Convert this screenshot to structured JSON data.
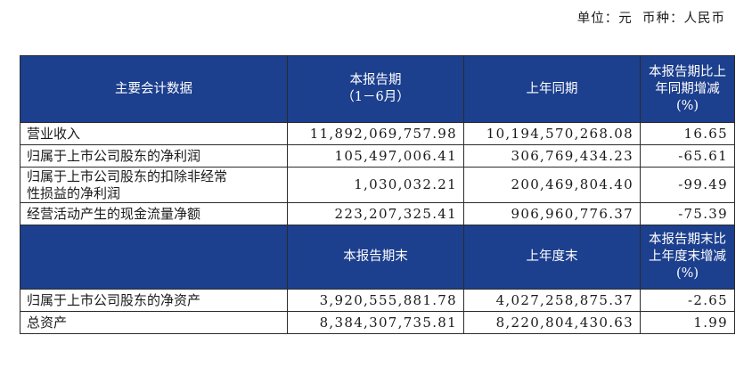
{
  "unit_line": {
    "unit_label": "单位：",
    "unit_value": "元",
    "currency_label": "币种：",
    "currency_value": "人民币"
  },
  "table": {
    "header1": {
      "col1": "主要会计数据",
      "col2_line1": "本报告期",
      "col2_line2": "（1－6月）",
      "col3": "上年同期",
      "col4_line1": "本报告期比上",
      "col4_line2": "年同期增减",
      "col4_line3": "(%)"
    },
    "rows_a": [
      {
        "label": "营业收入",
        "current": "11,892,069,757.98",
        "prior": "10,194,570,268.08",
        "change": "16.65"
      },
      {
        "label": "归属于上市公司股东的净利润",
        "current": "105,497,006.41",
        "prior": "306,769,434.23",
        "change": "-65.61"
      },
      {
        "label_line1": "归属于上市公司股东的扣除非经常",
        "label_line2": "性损益的净利润",
        "current": "1,030,032.21",
        "prior": "200,469,804.40",
        "change": "-99.49"
      },
      {
        "label": "经营活动产生的现金流量净额",
        "current": "223,207,325.41",
        "prior": "906,960,776.37",
        "change": "-75.39"
      }
    ],
    "header2": {
      "col1": "",
      "col2": "本报告期末",
      "col3": "上年度末",
      "col4_line1": "本报告期末比",
      "col4_line2": "上年度末增减",
      "col4_line3": "(%)"
    },
    "rows_b": [
      {
        "label": "归属于上市公司股东的净资产",
        "current": "3,920,555,881.78",
        "prior": "4,027,258,875.37",
        "change": "-2.65"
      },
      {
        "label": "总资产",
        "current": "8,384,307,735.81",
        "prior": "8,220,804,430.63",
        "change": "1.99"
      }
    ]
  },
  "colors": {
    "header_bg": "#1c3f8e",
    "header_text": "#ffffff",
    "border": "#2b2b2b"
  }
}
